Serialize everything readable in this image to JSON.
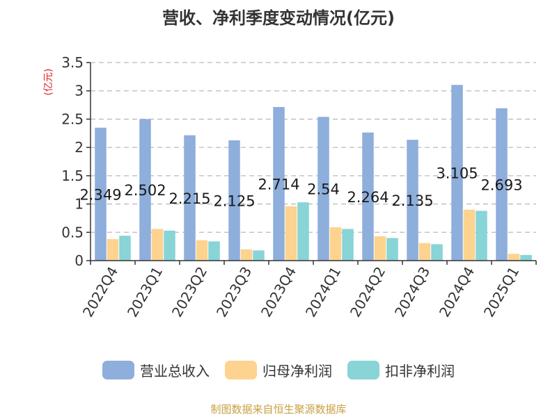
{
  "chart_data": {
    "type": "bar",
    "title": "营收、净利季度变动情况(亿元)",
    "ylabel": "(亿元)",
    "ylim": [
      0,
      3.5
    ],
    "yticks": [
      "0",
      "0.5",
      "1",
      "1.5",
      "2",
      "2.5",
      "3",
      "3.5"
    ],
    "grid": true,
    "legend_position": "bottom",
    "categories": [
      "2022Q4",
      "2023Q1",
      "2023Q2",
      "2023Q3",
      "2023Q4",
      "2024Q1",
      "2024Q2",
      "2024Q3",
      "2024Q4",
      "2025Q1"
    ],
    "series": [
      {
        "name": "营业总收入",
        "color": "#8eaedc",
        "values": [
          2.349,
          2.502,
          2.215,
          2.125,
          2.714,
          2.54,
          2.264,
          2.135,
          3.105,
          2.693
        ],
        "labels": [
          "2.349",
          "2.502",
          "2.215",
          "2.125",
          "2.714",
          "2.54",
          "2.264",
          "2.135",
          "3.105",
          "2.693"
        ]
      },
      {
        "name": "归母净利润",
        "color": "#fdd38f",
        "values": [
          0.38,
          0.56,
          0.36,
          0.2,
          0.96,
          0.59,
          0.43,
          0.31,
          0.9,
          0.12
        ]
      },
      {
        "name": "扣非净利润",
        "color": "#88d4d7",
        "values": [
          0.44,
          0.53,
          0.34,
          0.18,
          1.03,
          0.56,
          0.4,
          0.29,
          0.88,
          0.1
        ]
      }
    ]
  },
  "source_text": "制图数据来自恒生聚源数据库",
  "axis_color": "#333333",
  "grid_color": "#bbbbbb",
  "ylabel_color": "#e02020"
}
